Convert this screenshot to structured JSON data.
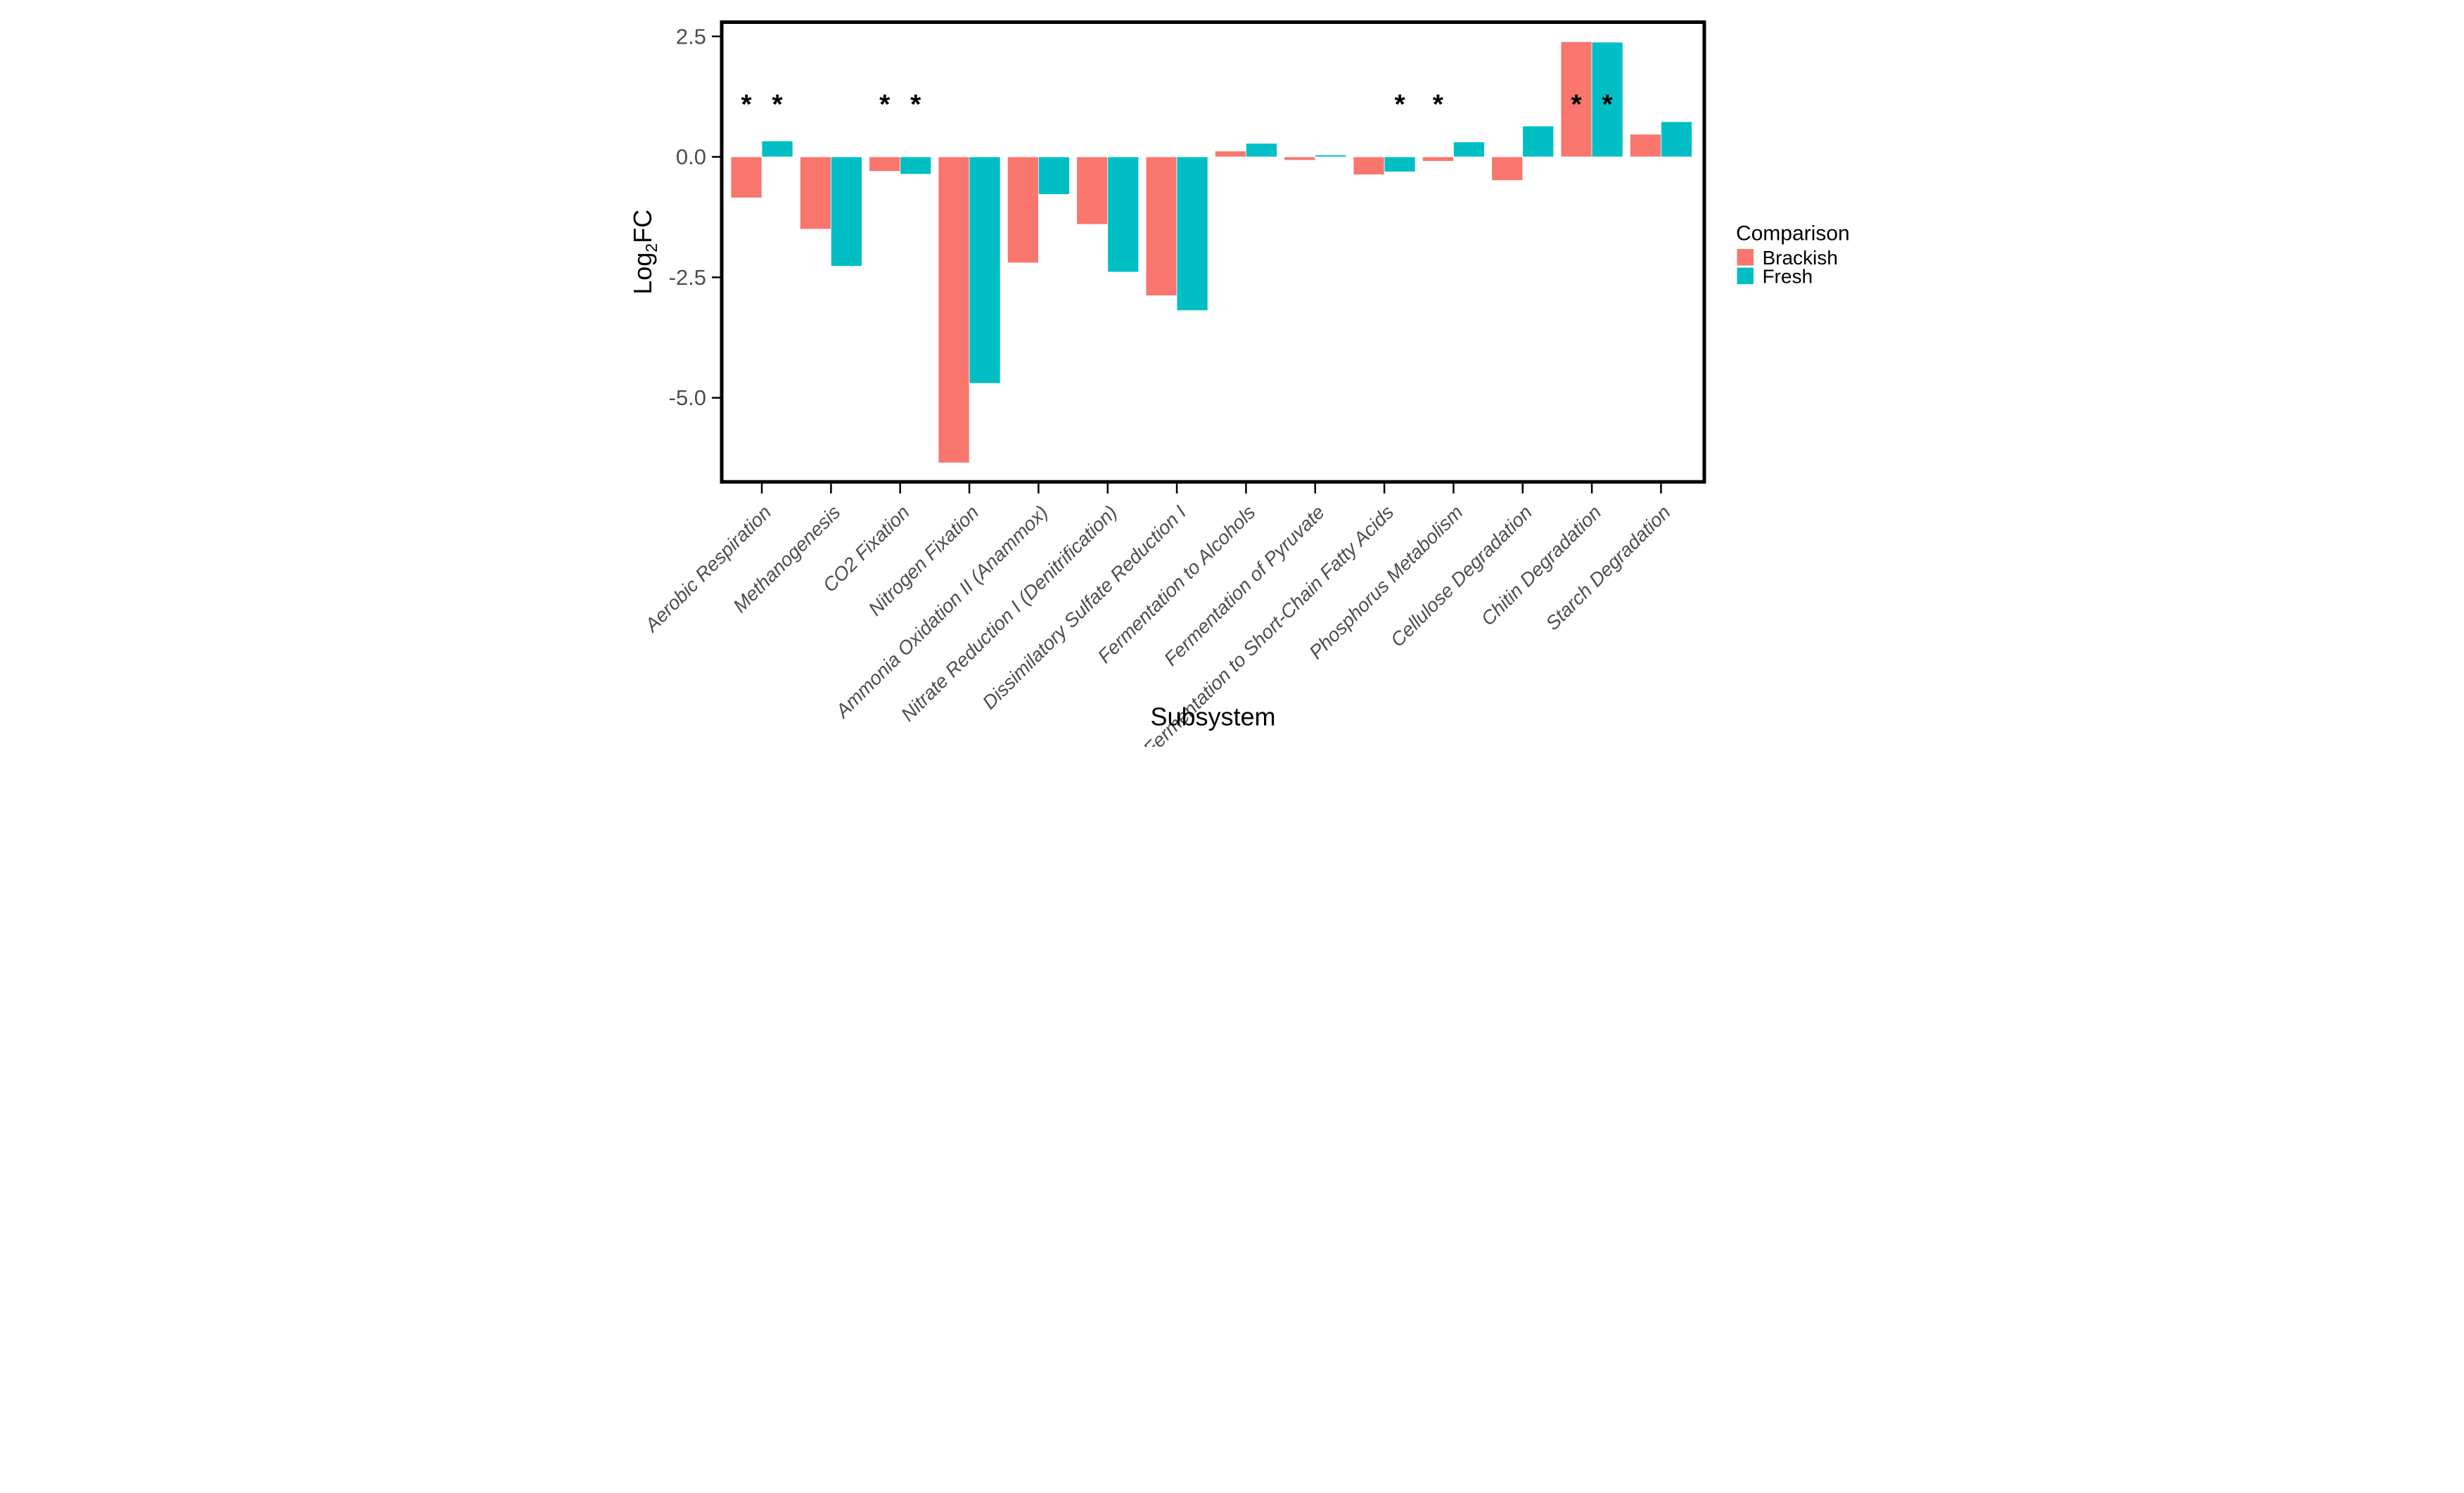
{
  "figure": {
    "background": "#ffffff",
    "panel_border_color": "#000000",
    "axis_text_color": "#4d4d4d",
    "title_text_color": "#000000"
  },
  "legend": {
    "title": "Comparison",
    "position": "right",
    "items": [
      {
        "label": "Brackish",
        "color": "#F8766D"
      },
      {
        "label": "Fresh",
        "color": "#00BFC4"
      }
    ]
  },
  "chart_data": {
    "type": "bar",
    "title": "",
    "xlabel": "Subsystem",
    "ylabel": "Log2FC",
    "ylabel_parts": {
      "pre": "Log",
      "sub": "2",
      "post": "FC"
    },
    "grid": "off",
    "legend_position": "right",
    "ylim": [
      -6.75,
      2.8
    ],
    "yticks": [
      {
        "value": 2.5,
        "label": "2.5"
      },
      {
        "value": 0.0,
        "label": "0.0"
      },
      {
        "value": -2.5,
        "label": "-2.5"
      },
      {
        "value": -5.0,
        "label": "-5.0"
      }
    ],
    "categories": [
      "Aerobic Respiration",
      "Methanogenesis",
      "CO2 Fixation",
      "Nitrogen Fixation",
      "Ammonia Oxidation II (Anammox)",
      "Nitrate Reduction I (Denitrification)",
      "Dissimilatory Sulfate Reduction I",
      "Fermentation to Alcohols",
      "Fermentation of Pyruvate",
      "Fermentation to Short-Chain Fatty Acids",
      "Phosphorus Metabolism",
      "Cellulose Degradation",
      "Chitin Degradation",
      "Starch Degradation"
    ],
    "series": [
      {
        "name": "Brackish",
        "color": "#F8766D",
        "values": [
          -0.85,
          -1.5,
          -0.3,
          -6.35,
          -2.2,
          -1.4,
          -2.88,
          0.12,
          -0.07,
          -0.37,
          -0.09,
          -0.49,
          2.39,
          0.47
        ]
      },
      {
        "name": "Fresh",
        "color": "#00BFC4",
        "values": [
          0.33,
          -2.27,
          -0.36,
          -4.7,
          -0.78,
          -2.39,
          -3.19,
          0.28,
          0.04,
          -0.31,
          0.31,
          0.64,
          2.38,
          0.73
        ]
      }
    ],
    "significance_marker": "*",
    "significance_y": 1.15,
    "significance": [
      {
        "cat_index": 0,
        "series_index": 0
      },
      {
        "cat_index": 0,
        "series_index": 1
      },
      {
        "cat_index": 2,
        "series_index": 0
      },
      {
        "cat_index": 2,
        "series_index": 1
      },
      {
        "cat_index": 9,
        "series_index": 1
      },
      {
        "cat_index": 10,
        "series_index": 0
      },
      {
        "cat_index": 12,
        "series_index": 0
      },
      {
        "cat_index": 12,
        "series_index": 1
      }
    ]
  }
}
